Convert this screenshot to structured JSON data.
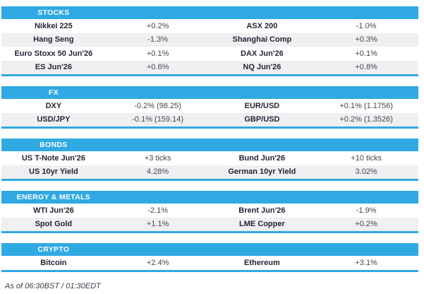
{
  "theme": {
    "accent_blue": "#2FA9E2",
    "row_alt_bg": "#F0F0F2",
    "header_text_color": "#FFFFFF",
    "instrument_text_color": "#1F2430",
    "value_text_color": "#43464F"
  },
  "chart_data": [
    {
      "type": "table",
      "title": "STOCKS",
      "rows": [
        [
          "Nikkei 225",
          "+0.2%",
          "ASX 200",
          "-1.0%"
        ],
        [
          "Hang Seng",
          "-1.3%",
          "Shanghai Comp",
          "+0.3%"
        ],
        [
          "Euro Stoxx 50 Jun'26",
          "+0.1%",
          "DAX Jun'26",
          "+0.1%"
        ],
        [
          "ES Jun'26",
          "+0.6%",
          "NQ Jun'26",
          "+0.8%"
        ]
      ]
    },
    {
      "type": "table",
      "title": "FX",
      "rows": [
        [
          "DXY",
          "-0.2% (98.25)",
          "EUR/USD",
          "+0.1% (1.1756)"
        ],
        [
          "USD/JPY",
          "-0.1% (159.14)",
          "GBP/USD",
          "+0.2% (1.3526)"
        ]
      ]
    },
    {
      "type": "table",
      "title": "BONDS",
      "rows": [
        [
          "US T-Note Jun'26",
          "+3 ticks",
          "Bund Jun'26",
          "+10 ticks"
        ],
        [
          "US 10yr Yield",
          "4.28%",
          "German 10yr Yield",
          "3.02%"
        ]
      ]
    },
    {
      "type": "table",
      "title": "ENERGY & METALS",
      "rows": [
        [
          "WTI Jun'26",
          "-2.1%",
          "Brent Jun'26",
          "-1.9%"
        ],
        [
          "Spot Gold",
          "+1.1%",
          "LME Copper",
          "+0.2%"
        ]
      ]
    },
    {
      "type": "table",
      "title": "CRYPTO",
      "rows": [
        [
          "Bitcoin",
          "+2.4%",
          "Ethereum",
          "+3.1%"
        ]
      ]
    }
  ],
  "footer": {
    "as_of": "As of 06:30BST / 01:30EDT"
  }
}
